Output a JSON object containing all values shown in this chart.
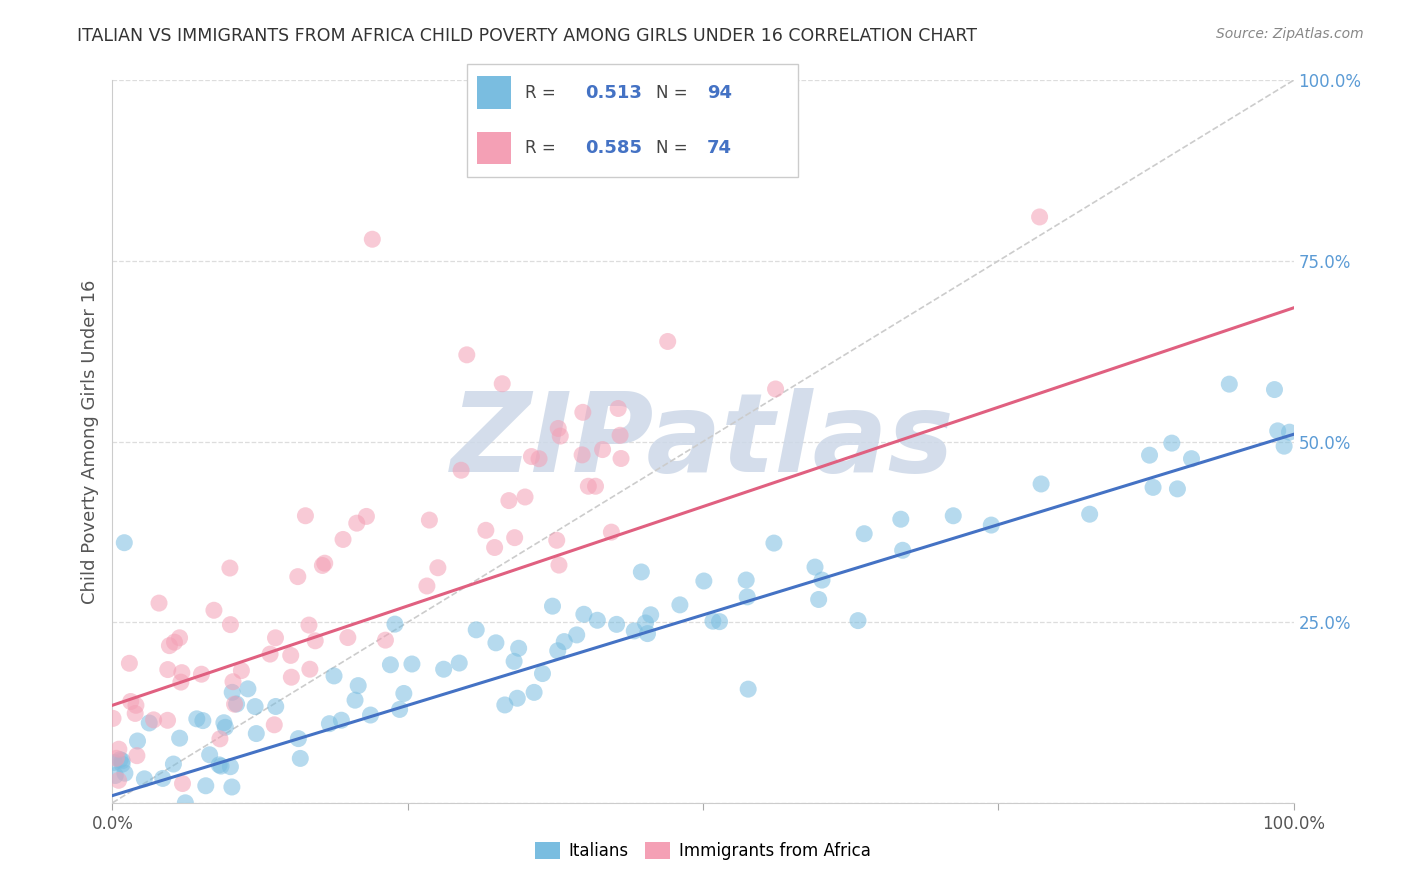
{
  "title": "ITALIAN VS IMMIGRANTS FROM AFRICA CHILD POVERTY AMONG GIRLS UNDER 16 CORRELATION CHART",
  "source": "Source: ZipAtlas.com",
  "ylabel": "Child Poverty Among Girls Under 16",
  "legend_label1": "Italians",
  "legend_label2": "Immigrants from Africa",
  "R1": 0.513,
  "N1": 94,
  "R2": 0.585,
  "N2": 74,
  "color1": "#7abde0",
  "color2": "#f4a0b5",
  "line_color1": "#4472c4",
  "line_color2": "#e06080",
  "bg_color": "#ffffff",
  "watermark_color": "#cdd8e8",
  "xlim": [
    0,
    1
  ],
  "ylim": [
    0,
    1
  ],
  "ytick_color": "#5b9bd5",
  "grid_color": "#dddddd"
}
